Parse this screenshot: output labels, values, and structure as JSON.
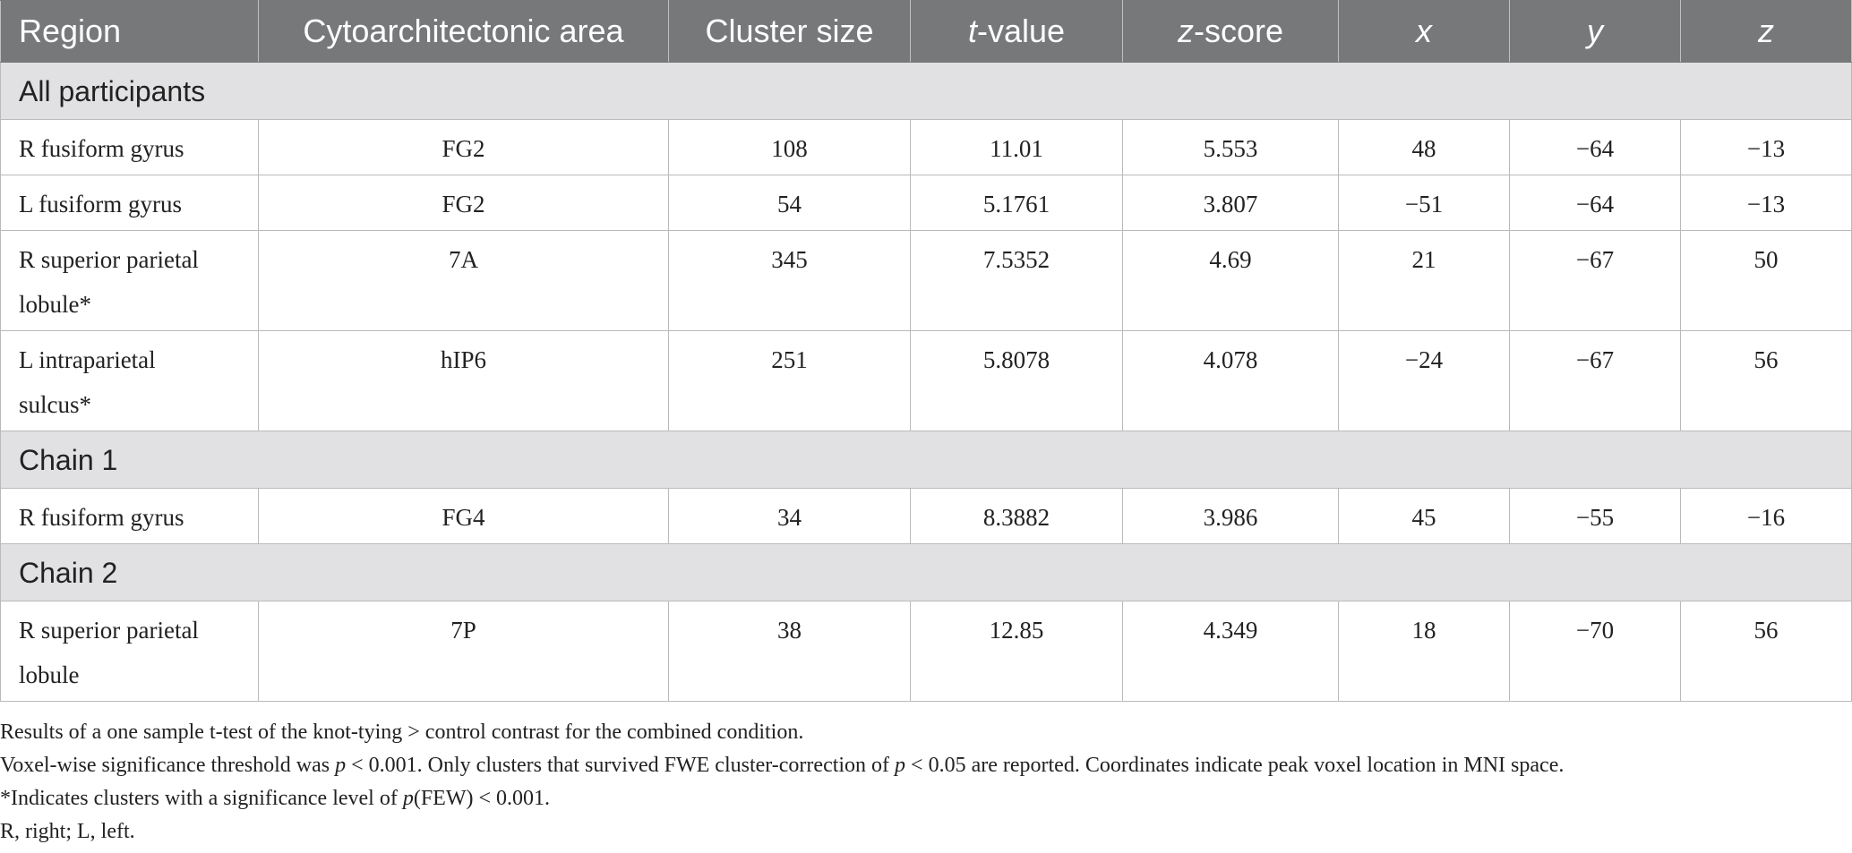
{
  "table": {
    "headers": [
      "Region",
      "Cytoarchitectonic area",
      "Cluster size",
      "t",
      "-value",
      "z",
      "-score",
      "x",
      "y",
      "z"
    ],
    "sections": [
      {
        "title": "All participants",
        "rows": [
          [
            "R fusiform gyrus",
            "FG2",
            "108",
            "11.01",
            "5.553",
            "48",
            "−64",
            "−13"
          ],
          [
            "L fusiform gyrus",
            "FG2",
            "54",
            "5.1761",
            "3.807",
            "−51",
            "−64",
            "−13"
          ],
          [
            "R superior parietal",
            "lobule*",
            "7A",
            "345",
            "7.5352",
            "4.69",
            "21",
            "−67",
            "50"
          ],
          [
            "L intraparietal",
            "sulcus*",
            "hIP6",
            "251",
            "5.8078",
            "4.078",
            "−24",
            "−67",
            "56"
          ]
        ]
      },
      {
        "title": "Chain 1",
        "rows": [
          [
            "R fusiform gyrus",
            "FG4",
            "34",
            "8.3882",
            "3.986",
            "45",
            "−55",
            "−16"
          ]
        ]
      },
      {
        "title": "Chain 2",
        "rows": [
          [
            "R superior parietal",
            "lobule",
            "7P",
            "38",
            "12.85",
            "4.349",
            "18",
            "−70",
            "56"
          ]
        ]
      }
    ]
  },
  "notes": {
    "line1": "Results of a one sample t-test of the knot-tying > control contrast for the combined condition.",
    "line2_a": "Voxel-wise significance threshold was ",
    "line2_p1": "p",
    "line2_b": " < 0.001. Only clusters that survived FWE cluster-correction of ",
    "line2_p2": "p",
    "line2_c": " < 0.05 are reported. Coordinates indicate peak voxel location in MNI space.",
    "line3_a": "*Indicates clusters with a significance level of ",
    "line3_p": "p",
    "line3_b": "(FEW) < 0.001.",
    "line4": "R, right; L, left."
  }
}
